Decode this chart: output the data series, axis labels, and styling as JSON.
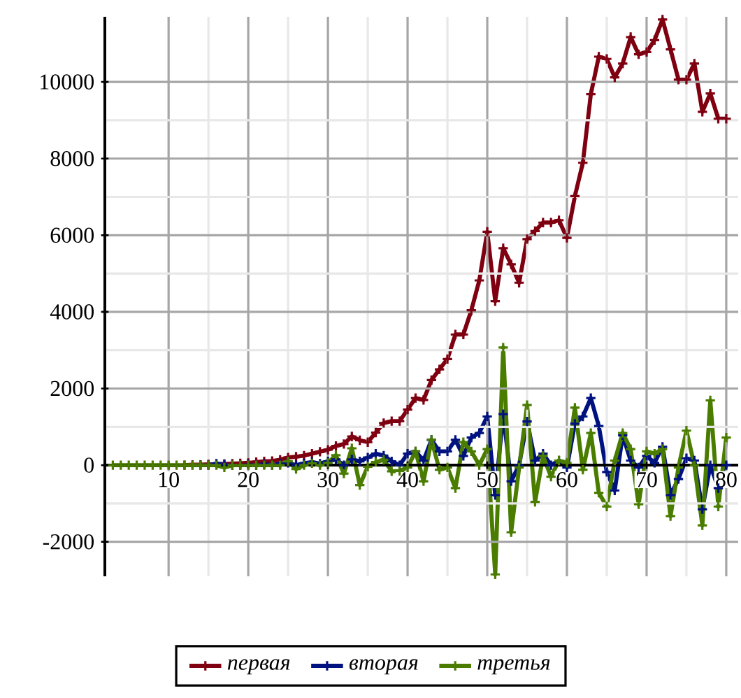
{
  "chart_data": {
    "type": "line",
    "x": [
      3,
      4,
      5,
      6,
      7,
      8,
      9,
      10,
      11,
      12,
      13,
      14,
      15,
      16,
      17,
      18,
      19,
      20,
      21,
      22,
      23,
      24,
      25,
      26,
      27,
      28,
      29,
      30,
      31,
      32,
      33,
      34,
      35,
      36,
      37,
      38,
      39,
      40,
      41,
      42,
      43,
      44,
      45,
      46,
      47,
      48,
      49,
      50,
      51,
      52,
      53,
      54,
      55,
      56,
      57,
      58,
      59,
      60,
      61,
      62,
      63,
      64,
      65,
      66,
      67,
      68,
      69,
      70,
      71,
      72,
      73,
      74,
      75,
      76,
      77,
      78,
      79,
      80
    ],
    "series": [
      {
        "name": "первая",
        "color": "#7f0010",
        "values": [
          null,
          null,
          null,
          null,
          null,
          null,
          null,
          null,
          null,
          0,
          10,
          10,
          20,
          20,
          30,
          40,
          50,
          60,
          80,
          100,
          110,
          140,
          200,
          220,
          250,
          300,
          350,
          400,
          500,
          550,
          750,
          650,
          600,
          850,
          1100,
          1150,
          1150,
          1450,
          1750,
          1700,
          2220,
          2500,
          2770,
          3410,
          3410,
          4040,
          4820,
          6090,
          4280,
          5660,
          5240,
          4760,
          5900,
          6110,
          6330,
          6330,
          6390,
          5930,
          7020,
          7890,
          9680,
          10660,
          10600,
          10120,
          10480,
          11170,
          10720,
          10780,
          11090,
          11630,
          10850,
          10060,
          10060,
          10480,
          9220,
          9700,
          9040,
          9040
        ]
      },
      {
        "name": "вторая",
        "color": "#00127f",
        "values": [
          null,
          null,
          null,
          null,
          null,
          null,
          null,
          null,
          null,
          null,
          null,
          0,
          0,
          40,
          20,
          0,
          0,
          20,
          0,
          30,
          0,
          40,
          60,
          0,
          50,
          80,
          40,
          100,
          150,
          0,
          150,
          100,
          200,
          300,
          250,
          100,
          0,
          300,
          360,
          120,
          660,
          360,
          360,
          660,
          240,
          720,
          840,
          1270,
          -780,
          1330,
          -420,
          0,
          1140,
          120,
          300,
          0,
          120,
          -60,
          1080,
          1270,
          1750,
          1020,
          -180,
          -660,
          780,
          120,
          -60,
          240,
          60,
          480,
          -780,
          -360,
          180,
          120,
          -1150,
          0,
          -600,
          0
        ]
      },
      {
        "name": "третья",
        "color": "#4a7c00",
        "values": [
          0,
          0,
          0,
          0,
          0,
          0,
          0,
          0,
          0,
          0,
          0,
          0,
          0,
          0,
          -60,
          0,
          0,
          0,
          0,
          0,
          0,
          0,
          100,
          -100,
          0,
          50,
          0,
          60,
          260,
          -220,
          440,
          -520,
          -40,
          80,
          140,
          -160,
          -150,
          -60,
          360,
          -420,
          660,
          -120,
          -60,
          -600,
          600,
          360,
          0,
          420,
          -2850,
          3070,
          -1750,
          -60,
          1570,
          -960,
          240,
          -300,
          120,
          60,
          1500,
          -120,
          840,
          -720,
          -1080,
          120,
          840,
          420,
          -1020,
          360,
          300,
          420,
          -1330,
          -60,
          900,
          0,
          -1570,
          1690,
          -1080,
          720
        ]
      }
    ],
    "xlim": [
      2,
      81.5
    ],
    "ylim": [
      -2900,
      11700
    ],
    "xticks": [
      10,
      20,
      30,
      40,
      50,
      60,
      70,
      80
    ],
    "yticks": [
      -2000,
      0,
      2000,
      4000,
      6000,
      8000,
      10000
    ],
    "grid": true,
    "legend": "bottom",
    "marker": "cross",
    "line_style": "solid"
  }
}
